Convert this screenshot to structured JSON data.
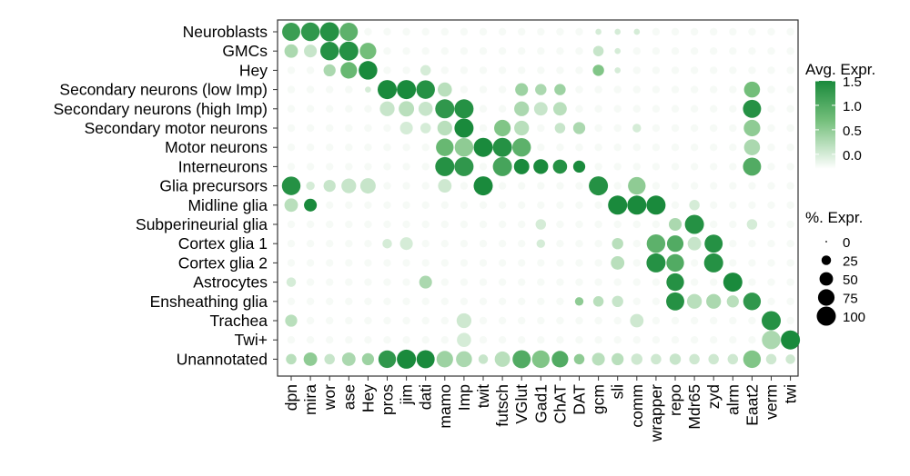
{
  "chart_data": {
    "type": "dot",
    "rows": [
      "Neuroblasts",
      "GMCs",
      "Hey",
      "Secondary neurons (low Imp)",
      "Secondary neurons (high Imp)",
      "Secondary motor neurons",
      "Motor neurons",
      "Interneurons",
      "Glia precursors",
      "Midline glia",
      "Subperineurial glia",
      "Cortex glia 1",
      "Cortex glia 2",
      "Astrocytes",
      "Ensheathing glia",
      "Trachea",
      "Twi+",
      "Unannotated"
    ],
    "genes": [
      "dpn",
      "mira",
      "wor",
      "ase",
      "Hey",
      "pros",
      "jim",
      "dati",
      "mamo",
      "Imp",
      "twit",
      "futsch",
      "VGlut",
      "Gad1",
      "ChAT",
      "DAT",
      "gcm",
      "sli",
      "comm",
      "wrapper",
      "repo",
      "Mdr65",
      "zyd",
      "alrm",
      "Eaat2",
      "verm",
      "twi"
    ],
    "dots": [
      [
        "Neuroblasts",
        "dpn",
        90,
        1.2
      ],
      [
        "Neuroblasts",
        "mira",
        95,
        1.3
      ],
      [
        "Neuroblasts",
        "wor",
        100,
        1.4
      ],
      [
        "Neuroblasts",
        "ase",
        90,
        0.9
      ],
      [
        "Neuroblasts",
        "gcm",
        10,
        0
      ],
      [
        "Neuroblasts",
        "sli",
        10,
        0
      ],
      [
        "Neuroblasts",
        "comm",
        10,
        0
      ],
      [
        "GMCs",
        "dpn",
        50,
        0.3
      ],
      [
        "GMCs",
        "mira",
        45,
        0.1
      ],
      [
        "GMCs",
        "wor",
        95,
        1.4
      ],
      [
        "GMCs",
        "ase",
        100,
        1.4
      ],
      [
        "GMCs",
        "Hey",
        75,
        0.7
      ],
      [
        "GMCs",
        "gcm",
        30,
        0.1
      ],
      [
        "GMCs",
        "sli",
        10,
        0
      ],
      [
        "Hey",
        "wor",
        40,
        0.3
      ],
      [
        "Hey",
        "ase",
        75,
        0.8
      ],
      [
        "Hey",
        "Hey",
        95,
        1.5
      ],
      [
        "Hey",
        "dati",
        30,
        0
      ],
      [
        "Hey",
        "gcm",
        35,
        0.6
      ],
      [
        "Hey",
        "sli",
        10,
        0
      ],
      [
        "Secondary neurons (low Imp)",
        "Hey",
        10,
        0
      ],
      [
        "Secondary neurons (low Imp)",
        "pros",
        100,
        1.5
      ],
      [
        "Secondary neurons (low Imp)",
        "jim",
        100,
        1.5
      ],
      [
        "Secondary neurons (low Imp)",
        "dati",
        95,
        1.4
      ],
      [
        "Secondary neurons (low Imp)",
        "mamo",
        55,
        0.2
      ],
      [
        "Secondary neurons (low Imp)",
        "VGlut",
        45,
        0.4
      ],
      [
        "Secondary neurons (low Imp)",
        "Gad1",
        35,
        0.3
      ],
      [
        "Secondary neurons (low Imp)",
        "ChAT",
        35,
        0.4
      ],
      [
        "Secondary neurons (low Imp)",
        "Eaat2",
        70,
        0.7
      ],
      [
        "Secondary neurons (high Imp)",
        "pros",
        60,
        0.1
      ],
      [
        "Secondary neurons (high Imp)",
        "jim",
        65,
        0.2
      ],
      [
        "Secondary neurons (high Imp)",
        "dati",
        55,
        0.1
      ],
      [
        "Secondary neurons (high Imp)",
        "mamo",
        100,
        1.3
      ],
      [
        "Secondary neurons (high Imp)",
        "Imp",
        100,
        1.4
      ],
      [
        "Secondary neurons (high Imp)",
        "VGlut",
        60,
        0.3
      ],
      [
        "Secondary neurons (high Imp)",
        "Gad1",
        50,
        0.1
      ],
      [
        "Secondary neurons (high Imp)",
        "ChAT",
        50,
        0.2
      ],
      [
        "Secondary neurons (high Imp)",
        "Eaat2",
        90,
        1.4
      ],
      [
        "Secondary motor neurons",
        "jim",
        45,
        0
      ],
      [
        "Secondary motor neurons",
        "dati",
        30,
        0
      ],
      [
        "Secondary motor neurons",
        "mamo",
        60,
        0.2
      ],
      [
        "Secondary motor neurons",
        "Imp",
        100,
        1.5
      ],
      [
        "Secondary motor neurons",
        "futsch",
        75,
        0.6
      ],
      [
        "Secondary motor neurons",
        "VGlut",
        60,
        0.2
      ],
      [
        "Secondary motor neurons",
        "ChAT",
        30,
        0.1
      ],
      [
        "Secondary motor neurons",
        "DAT",
        40,
        0.3
      ],
      [
        "Secondary motor neurons",
        "comm",
        20,
        0
      ],
      [
        "Secondary motor neurons",
        "Eaat2",
        75,
        0.5
      ],
      [
        "Motor neurons",
        "mamo",
        85,
        0.8
      ],
      [
        "Motor neurons",
        "Imp",
        95,
        0.5
      ],
      [
        "Motor neurons",
        "twit",
        100,
        1.5
      ],
      [
        "Motor neurons",
        "futsch",
        100,
        1.4
      ],
      [
        "Motor neurons",
        "VGlut",
        95,
        0.9
      ],
      [
        "Motor neurons",
        "Eaat2",
        70,
        0.3
      ],
      [
        "Interneurons",
        "mamo",
        100,
        1.4
      ],
      [
        "Interneurons",
        "Imp",
        100,
        1.3
      ],
      [
        "Interneurons",
        "futsch",
        100,
        1.1
      ],
      [
        "Interneurons",
        "VGlut",
        65,
        1.5
      ],
      [
        "Interneurons",
        "Gad1",
        60,
        1.5
      ],
      [
        "Interneurons",
        "ChAT",
        55,
        1.4
      ],
      [
        "Interneurons",
        "DAT",
        40,
        1.5
      ],
      [
        "Interneurons",
        "Eaat2",
        90,
        1.0
      ],
      [
        "Glia precursors",
        "dpn",
        95,
        1.4
      ],
      [
        "Glia precursors",
        "mira",
        20,
        0
      ],
      [
        "Glia precursors",
        "wor",
        40,
        0.1
      ],
      [
        "Glia precursors",
        "ase",
        60,
        0.1
      ],
      [
        "Glia precursors",
        "Hey",
        65,
        0.1
      ],
      [
        "Glia precursors",
        "mamo",
        50,
        0.05
      ],
      [
        "Glia precursors",
        "twit",
        100,
        1.5
      ],
      [
        "Glia precursors",
        "gcm",
        100,
        1.4
      ],
      [
        "Glia precursors",
        "comm",
        85,
        0.5
      ],
      [
        "Midline glia",
        "dpn",
        50,
        0.2
      ],
      [
        "Midline glia",
        "mira",
        45,
        1.5
      ],
      [
        "Midline glia",
        "sli",
        100,
        1.5
      ],
      [
        "Midline glia",
        "comm",
        100,
        1.5
      ],
      [
        "Midline glia",
        "wrapper",
        100,
        1.5
      ],
      [
        "Midline glia",
        "Mdr65",
        30,
        0
      ],
      [
        "Subperineurial glia",
        "Gad1",
        30,
        0
      ],
      [
        "Subperineurial glia",
        "repo",
        45,
        0.3
      ],
      [
        "Subperineurial glia",
        "Mdr65",
        100,
        1.4
      ],
      [
        "Subperineurial glia",
        "Eaat2",
        30,
        0
      ],
      [
        "Cortex glia 1",
        "pros",
        25,
        0
      ],
      [
        "Cortex glia 1",
        "jim",
        45,
        0
      ],
      [
        "Cortex glia 1",
        "Gad1",
        20,
        0
      ],
      [
        "Cortex glia 1",
        "sli",
        35,
        0.2
      ],
      [
        "Cortex glia 1",
        "wrapper",
        95,
        0.9
      ],
      [
        "Cortex glia 1",
        "repo",
        75,
        1.0
      ],
      [
        "Cortex glia 1",
        "Mdr65",
        50,
        0.1
      ],
      [
        "Cortex glia 1",
        "zyd",
        90,
        1.4
      ],
      [
        "Cortex glia 2",
        "sli",
        50,
        0.2
      ],
      [
        "Cortex glia 2",
        "wrapper",
        100,
        1.4
      ],
      [
        "Cortex glia 2",
        "repo",
        85,
        1.0
      ],
      [
        "Cortex glia 2",
        "zyd",
        100,
        1.4
      ],
      [
        "Astrocytes",
        "dpn",
        25,
        0
      ],
      [
        "Astrocytes",
        "dati",
        45,
        0.3
      ],
      [
        "Astrocytes",
        "repo",
        85,
        1.4
      ],
      [
        "Astrocytes",
        "alrm",
        100,
        1.5
      ],
      [
        "Ensheathing glia",
        "DAT",
        20,
        0.5
      ],
      [
        "Ensheathing glia",
        "gcm",
        30,
        0.2
      ],
      [
        "Ensheathing glia",
        "sli",
        35,
        0.1
      ],
      [
        "Ensheathing glia",
        "repo",
        90,
        1.4
      ],
      [
        "Ensheathing glia",
        "Mdr65",
        60,
        0.2
      ],
      [
        "Ensheathing glia",
        "zyd",
        60,
        0.3
      ],
      [
        "Ensheathing glia",
        "alrm",
        40,
        0.2
      ],
      [
        "Ensheathing glia",
        "Eaat2",
        85,
        1.3
      ],
      [
        "Trachea",
        "dpn",
        40,
        0.2
      ],
      [
        "Trachea",
        "Imp",
        60,
        0.05
      ],
      [
        "Trachea",
        "comm",
        50,
        0.05
      ],
      [
        "Trachea",
        "verm",
        100,
        1.4
      ],
      [
        "Twi+",
        "Imp",
        55,
        0
      ],
      [
        "Twi+",
        "verm",
        95,
        0.3
      ],
      [
        "Twi+",
        "twi",
        100,
        1.5
      ],
      [
        "Unannotated",
        "dpn",
        30,
        0.2
      ],
      [
        "Unannotated",
        "mira",
        50,
        0.5
      ],
      [
        "Unannotated",
        "wor",
        30,
        0.1
      ],
      [
        "Unannotated",
        "ase",
        50,
        0.3
      ],
      [
        "Unannotated",
        "Hey",
        40,
        0.4
      ],
      [
        "Unannotated",
        "pros",
        85,
        1.3
      ],
      [
        "Unannotated",
        "jim",
        100,
        1.5
      ],
      [
        "Unannotated",
        "dati",
        90,
        1.5
      ],
      [
        "Unannotated",
        "mamo",
        75,
        0.4
      ],
      [
        "Unannotated",
        "Imp",
        70,
        0.3
      ],
      [
        "Unannotated",
        "twit",
        25,
        0.1
      ],
      [
        "Unannotated",
        "futsch",
        65,
        0.2
      ],
      [
        "Unannotated",
        "VGlut",
        90,
        1.0
      ],
      [
        "Unannotated",
        "Gad1",
        85,
        0.6
      ],
      [
        "Unannotated",
        "ChAT",
        75,
        1.0
      ],
      [
        "Unannotated",
        "DAT",
        30,
        0.5
      ],
      [
        "Unannotated",
        "gcm",
        45,
        0.2
      ],
      [
        "Unannotated",
        "sli",
        40,
        0.2
      ],
      [
        "Unannotated",
        "comm",
        35,
        0.05
      ],
      [
        "Unannotated",
        "wrapper",
        30,
        0.05
      ],
      [
        "Unannotated",
        "repo",
        35,
        0.1
      ],
      [
        "Unannotated",
        "Mdr65",
        30,
        0.05
      ],
      [
        "Unannotated",
        "zyd",
        30,
        0.05
      ],
      [
        "Unannotated",
        "alrm",
        30,
        0.05
      ],
      [
        "Unannotated",
        "Eaat2",
        85,
        0.6
      ],
      [
        "Unannotated",
        "verm",
        30,
        0.05
      ],
      [
        "Unannotated",
        "twi",
        25,
        0.05
      ]
    ],
    "color_legend": {
      "title": "Avg. Expr.",
      "min": -0.3,
      "max": 1.5,
      "ticks": [
        "1.5",
        "1.0",
        "0.5",
        "0.0"
      ],
      "low_color": "#ffffff",
      "high_color": "#1a8a3c"
    },
    "size_legend": {
      "title": "%. Expr.",
      "values": [
        0,
        25,
        50,
        75,
        100
      ]
    }
  }
}
